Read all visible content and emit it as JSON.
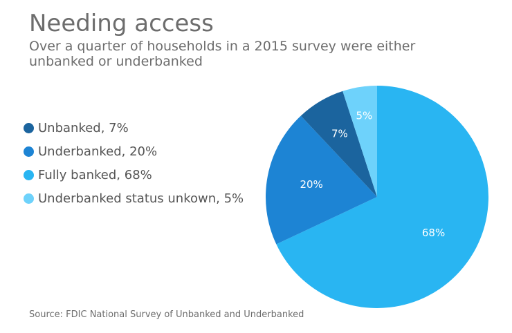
{
  "chart_data": {
    "type": "pie",
    "title": "Needing access",
    "subtitle": "Over a quarter of households in a 2015 survey were either unbanked or underbanked",
    "source": "Source: FDIC National Survey of Unbanked and Underbanked",
    "slices": [
      {
        "name": "Fully banked",
        "value": 68,
        "label": "68%",
        "legend": "Fully banked, 68%",
        "color": "#29b5f2"
      },
      {
        "name": "Underbanked",
        "value": 20,
        "label": "20%",
        "legend": "Underbanked, 20%",
        "color": "#1d84d4"
      },
      {
        "name": "Unbanked",
        "value": 7,
        "label": "7%",
        "legend": "Unbanked, 7%",
        "color": "#1b649e"
      },
      {
        "name": "Underbanked status unkown",
        "value": 5,
        "label": "5%",
        "legend": "Underbanked status unkown, 5%",
        "color": "#6ed2fb"
      }
    ],
    "legend_order": [
      2,
      1,
      0,
      3
    ],
    "legend_position": "left",
    "start_angle_deg": 0,
    "direction": "clockwise"
  }
}
